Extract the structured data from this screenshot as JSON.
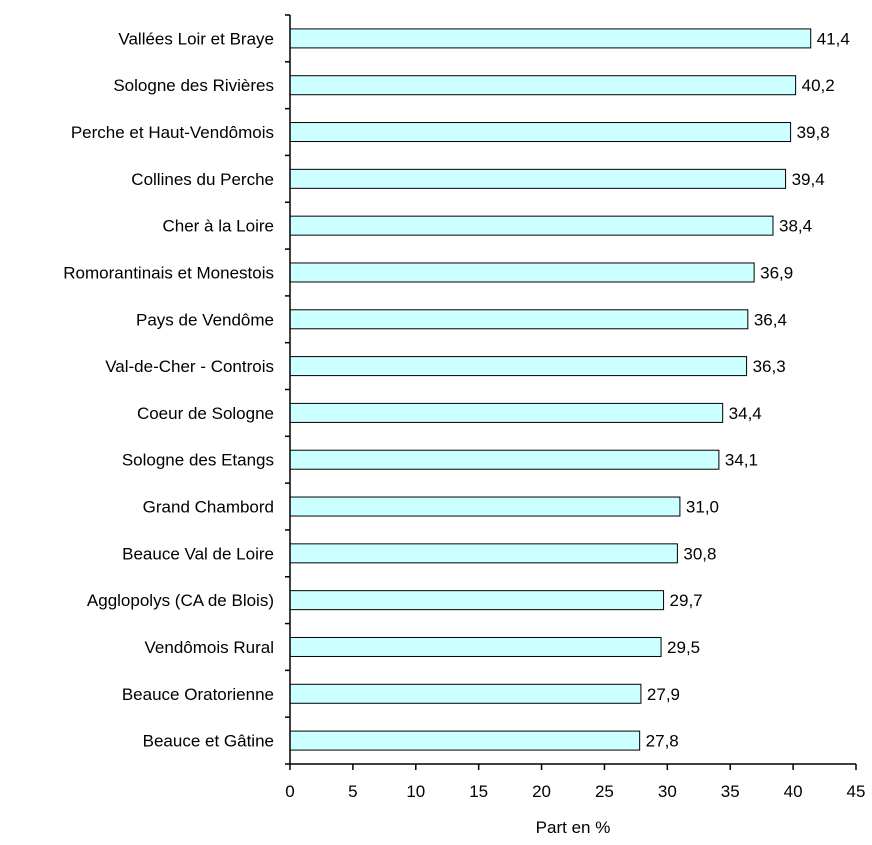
{
  "chart_data": {
    "type": "bar",
    "orientation": "horizontal",
    "categories": [
      "Vallées Loir et Braye",
      "Sologne des Rivières",
      "Perche et Haut-Vendômois",
      "Collines du Perche",
      "Cher à la Loire",
      "Romorantinais et Monestois",
      "Pays de Vendôme",
      "Val-de-Cher - Controis",
      "Coeur de Sologne",
      "Sologne des Etangs",
      "Grand Chambord",
      "Beauce Val de Loire",
      "Agglopolys (CA de Blois)",
      "Vendômois Rural",
      "Beauce Oratorienne",
      "Beauce et Gâtine"
    ],
    "values": [
      41.4,
      40.2,
      39.8,
      39.4,
      38.4,
      36.9,
      36.4,
      36.3,
      34.4,
      34.1,
      31.0,
      30.8,
      29.7,
      29.5,
      27.9,
      27.8
    ],
    "value_labels": [
      "41,4",
      "40,2",
      "39,8",
      "39,4",
      "38,4",
      "36,9",
      "36,4",
      "36,3",
      "34,4",
      "34,1",
      "31,0",
      "30,8",
      "29,7",
      "29,5",
      "27,9",
      "27,8"
    ],
    "xlabel": "Part en %",
    "ylabel": "",
    "xlim": [
      0,
      45
    ],
    "xticks": [
      0,
      5,
      10,
      15,
      20,
      25,
      30,
      35,
      40,
      45
    ],
    "grid": false,
    "legend": "none",
    "bar_color": "#ccffff",
    "bar_edge_color": "#000000"
  }
}
